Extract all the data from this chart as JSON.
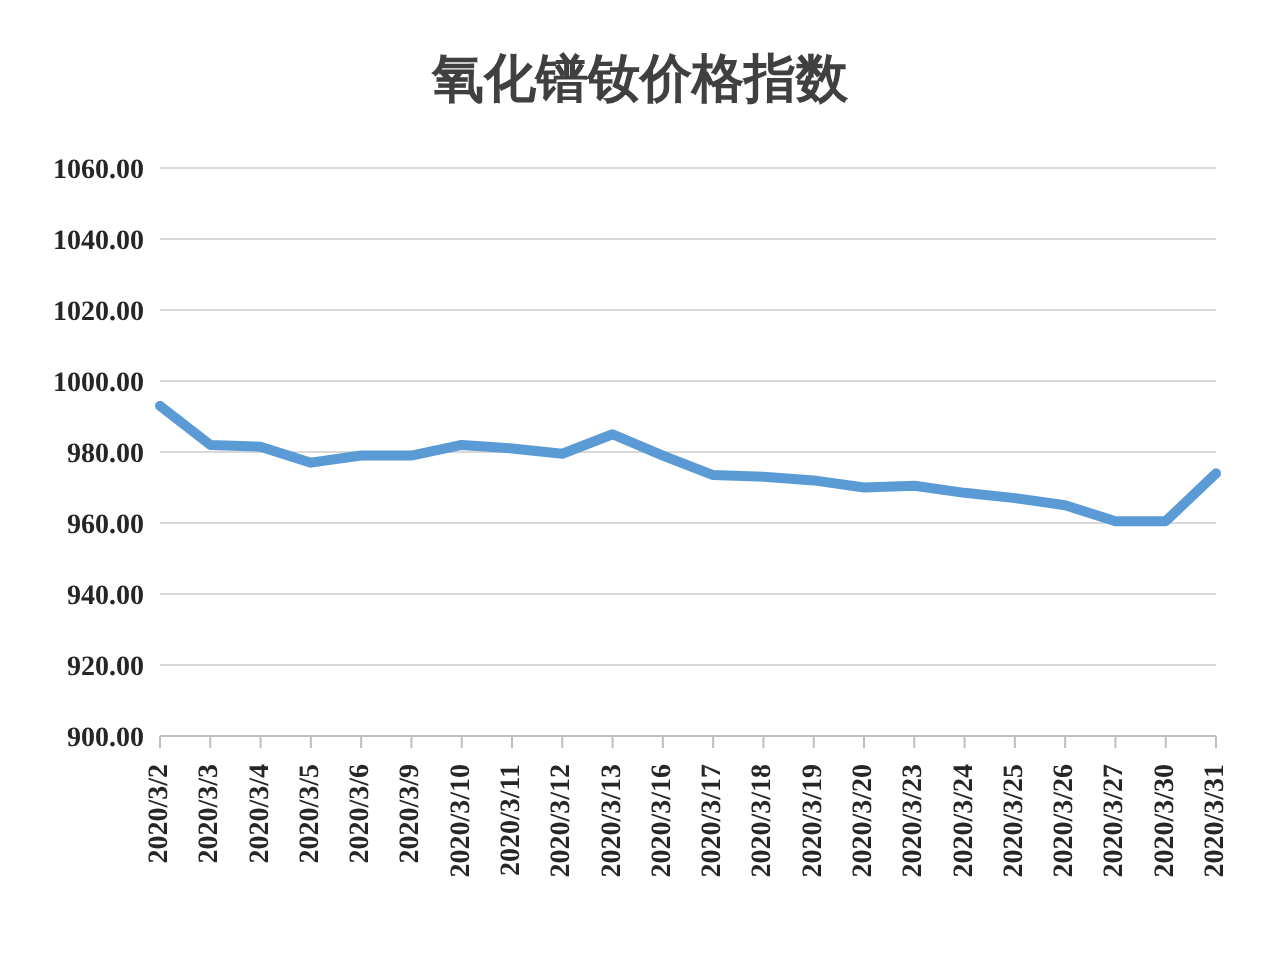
{
  "chart_data": {
    "type": "line",
    "title": "氧化镨钕价格指数",
    "categories": [
      "2020/3/2",
      "2020/3/3",
      "2020/3/4",
      "2020/3/5",
      "2020/3/6",
      "2020/3/9",
      "2020/3/10",
      "2020/3/11",
      "2020/3/12",
      "2020/3/13",
      "2020/3/16",
      "2020/3/17",
      "2020/3/18",
      "2020/3/19",
      "2020/3/20",
      "2020/3/23",
      "2020/3/24",
      "2020/3/25",
      "2020/3/26",
      "2020/3/27",
      "2020/3/30",
      "2020/3/31"
    ],
    "series": [
      {
        "color": "#5b9bd5",
        "values": [
          993,
          982,
          981.5,
          977,
          979,
          979,
          982,
          981,
          979.5,
          985,
          979,
          973.5,
          973,
          972,
          970,
          970.5,
          968.5,
          967,
          965,
          960.5,
          960.5,
          974
        ]
      }
    ],
    "ylim": [
      900,
      1060
    ],
    "yticks": [
      {
        "value": 900,
        "label": "900.00"
      },
      {
        "value": 920,
        "label": "920.00"
      },
      {
        "value": 940,
        "label": "940.00"
      },
      {
        "value": 960,
        "label": "960.00"
      },
      {
        "value": 980,
        "label": "980.00"
      },
      {
        "value": 1000,
        "label": "1000.00"
      },
      {
        "value": 1020,
        "label": "1020.00"
      },
      {
        "value": 1040,
        "label": "1040.00"
      },
      {
        "value": 1060,
        "label": "1060.00"
      }
    ],
    "grid": "y",
    "marker": "none",
    "line_style": "solid",
    "legend": false
  }
}
